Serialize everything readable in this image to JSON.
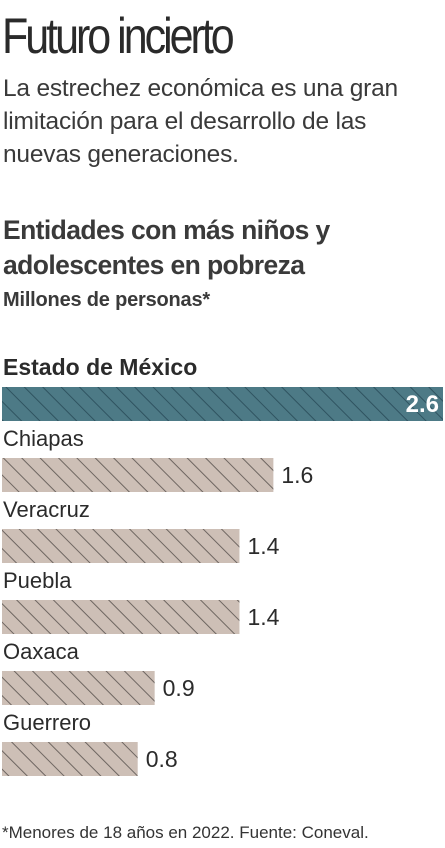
{
  "header": {
    "title": "Futuro incierto",
    "subtitle": "La estrechez económica es una gran limitación para el desarrollo de las nuevas generaciones."
  },
  "chart_data": {
    "type": "bar",
    "orientation": "horizontal",
    "title": "Entidades con más niños y adolescentes en pobreza",
    "subtitle": "Millones de personas*",
    "categories": [
      "Estado de México",
      "Chiapas",
      "Veracruz",
      "Puebla",
      "Oaxaca",
      "Guerrero"
    ],
    "values": [
      2.6,
      1.6,
      1.4,
      1.4,
      0.9,
      0.8
    ],
    "value_labels": [
      "2.6",
      "1.6",
      "1.4",
      "1.4",
      "0.9",
      "0.8"
    ],
    "highlight_index": 0,
    "xlim": [
      0,
      2.6
    ],
    "grid": false,
    "legend": "none",
    "colors": {
      "highlight_fill": "#4d7a86",
      "highlight_stripe": "#2f5360",
      "bar_fill": "#cdbfb6",
      "bar_stripe": "#6e6661",
      "text": "#2b2b2b",
      "highlight_value_text": "#ffffff"
    }
  },
  "footnote": "*Menores de 18 años en 2022. Fuente: Coneval."
}
